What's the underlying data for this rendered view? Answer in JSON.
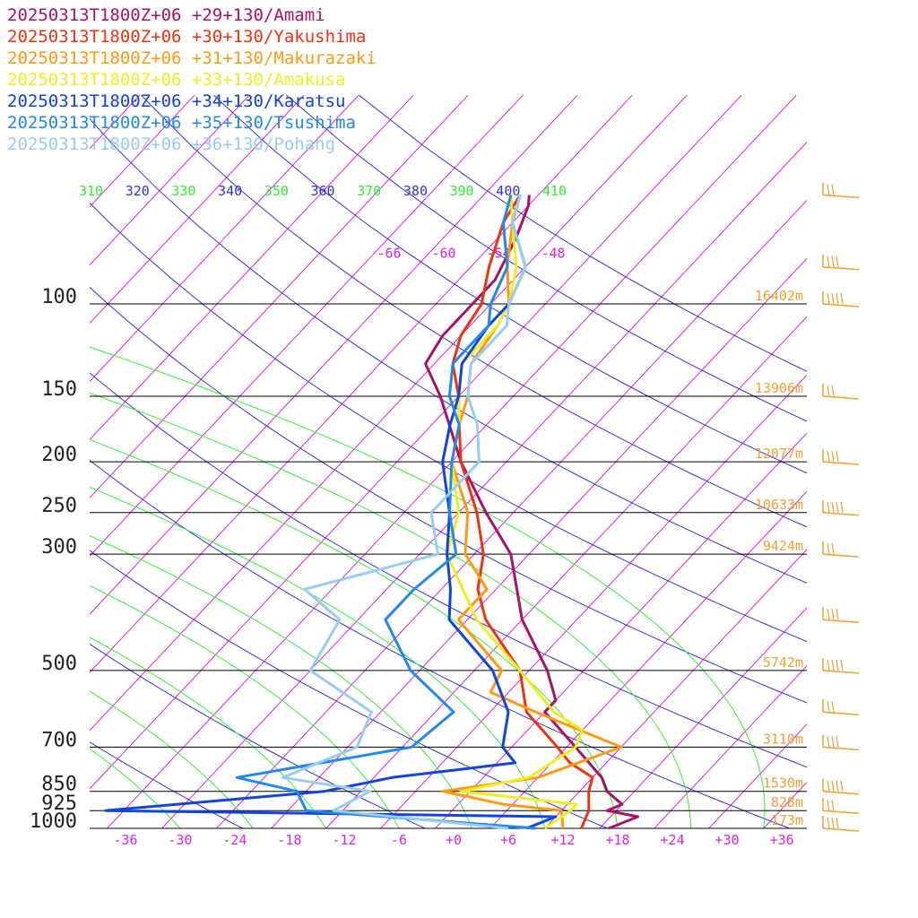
{
  "chart_data": {
    "type": "line",
    "title": "",
    "xlabel": "",
    "ylabel": "",
    "x_scale": "skew-T temperature (°C)",
    "y_scale": "log pressure (hPa)",
    "ylim": [
      1000,
      60
    ],
    "xlim": [
      -40,
      40
    ],
    "pressure_labels": [
      {
        "p": 100,
        "label": "100"
      },
      {
        "p": 150,
        "label": "150"
      },
      {
        "p": 200,
        "label": "200"
      },
      {
        "p": 250,
        "label": "250"
      },
      {
        "p": 300,
        "label": "300"
      },
      {
        "p": 500,
        "label": "500"
      },
      {
        "p": 700,
        "label": "700"
      },
      {
        "p": 850,
        "label": "850"
      },
      {
        "p": 925,
        "label": "925"
      },
      {
        "p": 1000,
        "label": "1000"
      }
    ],
    "x_ticks": [
      {
        "t": -36,
        "label": "-36"
      },
      {
        "t": -30,
        "label": "-30"
      },
      {
        "t": -24,
        "label": "-24"
      },
      {
        "t": -18,
        "label": "-18"
      },
      {
        "t": -12,
        "label": "-12"
      },
      {
        "t": -6,
        "label": "-6"
      },
      {
        "t": 0,
        "label": "+0"
      },
      {
        "t": 6,
        "label": "+6"
      },
      {
        "t": 12,
        "label": "+12"
      },
      {
        "t": 18,
        "label": "+18"
      },
      {
        "t": 24,
        "label": "+24"
      },
      {
        "t": 30,
        "label": "+30"
      },
      {
        "t": 36,
        "label": "+36"
      }
    ],
    "upper_t_labels": [
      {
        "t": -66,
        "label": "-66"
      },
      {
        "t": -60,
        "label": "-60"
      },
      {
        "t": -54,
        "label": "-54"
      },
      {
        "t": -48,
        "label": "-48"
      }
    ],
    "theta_labels": [
      {
        "theta": 310,
        "label": "310",
        "color": "#33ee33"
      },
      {
        "theta": 320,
        "label": "320",
        "color": "#3333dd"
      },
      {
        "theta": 330,
        "label": "330",
        "color": "#33ee33"
      },
      {
        "theta": 340,
        "label": "340",
        "color": "#3333dd"
      },
      {
        "theta": 350,
        "label": "350",
        "color": "#33ee33"
      },
      {
        "theta": 360,
        "label": "360",
        "color": "#3333dd"
      },
      {
        "theta": 370,
        "label": "370",
        "color": "#33ee33"
      },
      {
        "theta": 380,
        "label": "380",
        "color": "#3333dd"
      },
      {
        "theta": 390,
        "label": "390",
        "color": "#33ee33"
      },
      {
        "theta": 400,
        "label": "400",
        "color": "#3333dd"
      },
      {
        "theta": 410,
        "label": "410",
        "color": "#33ee33"
      }
    ],
    "height_labels": [
      {
        "p": 100,
        "label": "16402m"
      },
      {
        "p": 150,
        "label": "13906m"
      },
      {
        "p": 200,
        "label": "12077m"
      },
      {
        "p": 250,
        "label": "10633m"
      },
      {
        "p": 300,
        "label": "9424m"
      },
      {
        "p": 500,
        "label": "5742m"
      },
      {
        "p": 700,
        "label": "3110m"
      },
      {
        "p": 850,
        "label": "1530m"
      },
      {
        "p": 925,
        "label": "828m"
      },
      {
        "p": 1000,
        "label": "173m"
      }
    ],
    "series": [
      {
        "name": "20250313T1800Z+06 +29+130/Amami",
        "color": "#aa1166",
        "points": [
          [
            1000,
            17
          ],
          [
            950,
            19
          ],
          [
            925,
            15
          ],
          [
            900,
            16
          ],
          [
            850,
            13
          ],
          [
            800,
            11
          ],
          [
            700,
            5
          ],
          [
            600,
            -2
          ],
          [
            570,
            -2
          ],
          [
            500,
            -6
          ],
          [
            400,
            -14
          ],
          [
            300,
            -22
          ],
          [
            250,
            -29
          ],
          [
            200,
            -37
          ],
          [
            150,
            -46
          ],
          [
            130,
            -51
          ],
          [
            115,
            -52
          ],
          [
            100,
            -52
          ],
          [
            90,
            -52
          ],
          [
            75,
            -54
          ],
          [
            65,
            -56
          ],
          [
            62,
            -57
          ]
        ]
      },
      {
        "name": "20250313T1800Z+06 +30+130/Yakushima",
        "color": "#ee3311",
        "points": [
          [
            1000,
            14
          ],
          [
            925,
            13
          ],
          [
            850,
            11
          ],
          [
            800,
            10
          ],
          [
            750,
            6
          ],
          [
            700,
            3
          ],
          [
            600,
            -4
          ],
          [
            500,
            -9
          ],
          [
            400,
            -18
          ],
          [
            350,
            -22
          ],
          [
            300,
            -25
          ],
          [
            250,
            -30
          ],
          [
            200,
            -37
          ],
          [
            170,
            -41
          ],
          [
            150,
            -44
          ],
          [
            130,
            -48
          ],
          [
            115,
            -50
          ],
          [
            100,
            -51
          ],
          [
            85,
            -54
          ],
          [
            70,
            -57
          ],
          [
            62,
            -58
          ]
        ]
      },
      {
        "name": "20250313T1800Z+06 +31+130/Makurazaki",
        "color": "#ff9911",
        "points": [
          [
            1000,
            12
          ],
          [
            925,
            10
          ],
          [
            900,
            3
          ],
          [
            850,
            -5
          ],
          [
            800,
            4
          ],
          [
            700,
            10
          ],
          [
            600,
            -3
          ],
          [
            550,
            -10
          ],
          [
            500,
            -11
          ],
          [
            400,
            -21
          ],
          [
            350,
            -21
          ],
          [
            300,
            -27
          ],
          [
            250,
            -31
          ],
          [
            200,
            -38
          ],
          [
            170,
            -41
          ],
          [
            150,
            -43
          ],
          [
            130,
            -46
          ],
          [
            110,
            -47
          ],
          [
            100,
            -48
          ],
          [
            85,
            -52
          ],
          [
            70,
            -56
          ],
          [
            62,
            -58
          ]
        ]
      },
      {
        "name": "20250313T1800Z+06 +33+130/Amakusa",
        "color": "#eeee22",
        "points": [
          [
            1000,
            10
          ],
          [
            925,
            11
          ],
          [
            900,
            11
          ],
          [
            850,
            -3
          ],
          [
            800,
            3
          ],
          [
            700,
            5
          ],
          [
            650,
            4
          ],
          [
            600,
            -1
          ],
          [
            500,
            -9
          ],
          [
            400,
            -19
          ],
          [
            300,
            -29
          ],
          [
            250,
            -32
          ],
          [
            200,
            -38
          ],
          [
            170,
            -41
          ],
          [
            150,
            -44
          ],
          [
            130,
            -47
          ],
          [
            110,
            -47
          ],
          [
            100,
            -48
          ],
          [
            85,
            -51
          ],
          [
            70,
            -56
          ],
          [
            62,
            -59
          ]
        ]
      },
      {
        "name": "20250313T1800Z+06 +34+130/Karatsu",
        "color": "#1144dd",
        "points": [
          [
            1000,
            8
          ],
          [
            950,
            10
          ],
          [
            925,
            -40
          ],
          [
            850,
            -18
          ],
          [
            800,
            -12
          ],
          [
            750,
            0
          ],
          [
            700,
            -3
          ],
          [
            600,
            -6
          ],
          [
            500,
            -12
          ],
          [
            400,
            -22
          ],
          [
            350,
            -25
          ],
          [
            300,
            -29
          ],
          [
            250,
            -33
          ],
          [
            200,
            -39
          ],
          [
            170,
            -42
          ],
          [
            150,
            -44
          ],
          [
            130,
            -47
          ],
          [
            110,
            -48
          ],
          [
            100,
            -48
          ],
          [
            85,
            -50
          ],
          [
            70,
            -56
          ],
          [
            62,
            -58
          ]
        ]
      },
      {
        "name": "20250313T1800Z+06 +35+130/Tsushima",
        "color": "#2288ee",
        "points": [
          [
            1000,
            9
          ],
          [
            925,
            -18
          ],
          [
            850,
            -21
          ],
          [
            800,
            -29
          ],
          [
            700,
            -13
          ],
          [
            600,
            -12
          ],
          [
            500,
            -21
          ],
          [
            400,
            -29
          ],
          [
            350,
            -29
          ],
          [
            300,
            -28
          ],
          [
            250,
            -33
          ],
          [
            200,
            -38
          ],
          [
            170,
            -41
          ],
          [
            150,
            -45
          ],
          [
            130,
            -48
          ],
          [
            110,
            -48
          ],
          [
            100,
            -50
          ],
          [
            85,
            -52
          ],
          [
            70,
            -57
          ],
          [
            62,
            -59
          ]
        ]
      },
      {
        "name": "20250313T1800Z+06 +36+130/Pohang",
        "color": "#99ccf2",
        "points": [
          [
            1000,
            6
          ],
          [
            925,
            -15
          ],
          [
            850,
            -13
          ],
          [
            800,
            -24
          ],
          [
            700,
            -19
          ],
          [
            600,
            -21
          ],
          [
            500,
            -32
          ],
          [
            400,
            -34
          ],
          [
            350,
            -41
          ],
          [
            300,
            -30
          ],
          [
            250,
            -35
          ],
          [
            200,
            -35
          ],
          [
            170,
            -39
          ],
          [
            150,
            -43
          ],
          [
            130,
            -46
          ],
          [
            110,
            -46
          ],
          [
            100,
            -48
          ],
          [
            85,
            -50
          ],
          [
            70,
            -56
          ],
          [
            62,
            -58
          ]
        ]
      }
    ],
    "wind_barbs": [
      {
        "p": 62
      },
      {
        "p": 85
      },
      {
        "p": 100
      },
      {
        "p": 150
      },
      {
        "p": 200
      },
      {
        "p": 250
      },
      {
        "p": 300
      },
      {
        "p": 400
      },
      {
        "p": 500
      },
      {
        "p": 600
      },
      {
        "p": 700
      },
      {
        "p": 850
      },
      {
        "p": 925
      },
      {
        "p": 1000
      }
    ],
    "colors": {
      "isotherm": "#dd22dd",
      "dry_adiabat": "#3333dd",
      "moist_adiabat": "#33ee33",
      "pressure_line": "#000000",
      "height_label": "#f0a030",
      "wind_barb": "#f0a030"
    }
  }
}
